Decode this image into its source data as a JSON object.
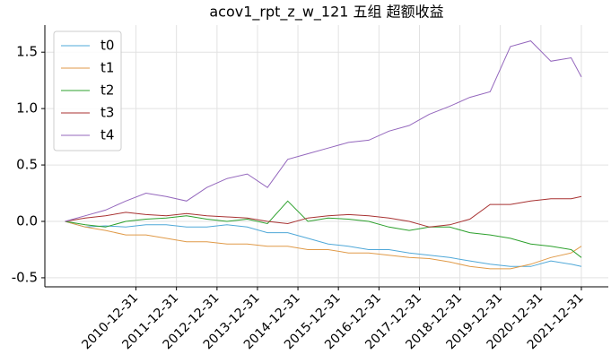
{
  "chart_data": {
    "type": "line",
    "title": "acov1_rpt_z_w_121 五组 超额收益",
    "x": [
      "2009-03-31",
      "2009-09-30",
      "2010-03-31",
      "2010-09-30",
      "2011-03-31",
      "2011-09-30",
      "2012-03-31",
      "2012-09-30",
      "2013-03-31",
      "2013-09-30",
      "2014-03-31",
      "2014-09-30",
      "2015-03-31",
      "2015-09-30",
      "2016-03-31",
      "2016-09-30",
      "2017-03-31",
      "2017-09-30",
      "2018-03-31",
      "2018-09-30",
      "2019-03-31",
      "2019-09-30",
      "2020-03-31",
      "2020-09-30",
      "2021-03-31",
      "2021-09-30",
      "2021-12-31"
    ],
    "series": [
      {
        "name": "t0",
        "color": "#4fa8d8",
        "values": [
          0,
          -0.05,
          -0.04,
          -0.05,
          -0.03,
          -0.03,
          -0.05,
          -0.05,
          -0.03,
          -0.05,
          -0.1,
          -0.1,
          -0.15,
          -0.2,
          -0.22,
          -0.25,
          -0.25,
          -0.28,
          -0.3,
          -0.32,
          -0.35,
          -0.38,
          -0.4,
          -0.4,
          -0.35,
          -0.38,
          -0.4
        ]
      },
      {
        "name": "t1",
        "color": "#e09a48",
        "values": [
          0,
          -0.05,
          -0.08,
          -0.12,
          -0.12,
          -0.15,
          -0.18,
          -0.18,
          -0.2,
          -0.2,
          -0.22,
          -0.22,
          -0.25,
          -0.25,
          -0.28,
          -0.28,
          -0.3,
          -0.32,
          -0.33,
          -0.36,
          -0.4,
          -0.42,
          -0.42,
          -0.38,
          -0.32,
          -0.28,
          -0.22
        ]
      },
      {
        "name": "t2",
        "color": "#2ca02c",
        "values": [
          0,
          -0.03,
          -0.05,
          0,
          0.02,
          0.03,
          0.05,
          0.02,
          0.0,
          0.02,
          -0.02,
          0.18,
          0.0,
          0.03,
          0.02,
          0.0,
          -0.05,
          -0.08,
          -0.05,
          -0.05,
          -0.1,
          -0.12,
          -0.15,
          -0.2,
          -0.22,
          -0.25,
          -0.32
        ]
      },
      {
        "name": "t3",
        "color": "#a83232",
        "values": [
          0,
          0.03,
          0.05,
          0.08,
          0.06,
          0.05,
          0.07,
          0.05,
          0.04,
          0.03,
          0.0,
          -0.02,
          0.03,
          0.05,
          0.06,
          0.05,
          0.03,
          0.0,
          -0.05,
          -0.03,
          0.02,
          0.15,
          0.15,
          0.18,
          0.2,
          0.2,
          0.22
        ]
      },
      {
        "name": "t4",
        "color": "#9467bd",
        "values": [
          0,
          0.05,
          0.1,
          0.18,
          0.25,
          0.22,
          0.18,
          0.3,
          0.38,
          0.42,
          0.3,
          0.55,
          0.6,
          0.65,
          0.7,
          0.72,
          0.8,
          0.85,
          0.95,
          1.02,
          1.1,
          1.15,
          1.55,
          1.6,
          1.42,
          1.45,
          1.28
        ]
      }
    ],
    "xlim": [
      "2008-09-30",
      "2022-08-31"
    ],
    "xticks": [
      "2010-12-31",
      "2011-12-31",
      "2012-12-31",
      "2013-12-31",
      "2014-12-31",
      "2015-12-31",
      "2016-12-31",
      "2017-12-31",
      "2018-12-31",
      "2019-12-31",
      "2020-12-31",
      "2021-12-31"
    ],
    "ylim": [
      -0.58,
      1.74
    ],
    "yticks": [
      -0.5,
      {
        "value": 0,
        "label": "0.0"
      },
      0.5,
      {
        "value": 1,
        "label": "1.0"
      },
      1.5
    ],
    "grid": true,
    "legend": "upper left"
  }
}
